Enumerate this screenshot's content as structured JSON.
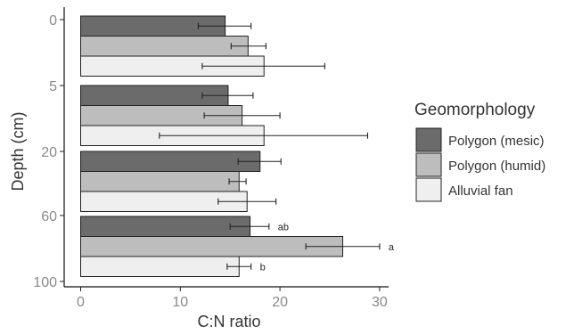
{
  "chart_data": {
    "type": "bar",
    "orientation": "horizontal",
    "title": "",
    "xlabel": "C:N ratio",
    "ylabel": "Depth (cm)",
    "xlim": [
      -1,
      31
    ],
    "x_ticks": [
      0,
      10,
      20,
      30
    ],
    "y_tick_labels": [
      "0",
      "5",
      "20",
      "60",
      "100"
    ],
    "grid": false,
    "legend": {
      "title": "Geomorphology",
      "placement": "right"
    },
    "series": [
      {
        "name": "Polygon (mesic)",
        "color": "#6b6b6b"
      },
      {
        "name": "Polygon (humid)",
        "color": "#bdbdbd"
      },
      {
        "name": "Alluvial fan",
        "color": "#efefef"
      }
    ],
    "groups": [
      {
        "values": [
          14.5,
          16.8,
          18.4
        ],
        "errors": [
          [
            11.8,
            17.1
          ],
          [
            15.1,
            18.6
          ],
          [
            12.2,
            24.5
          ]
        ],
        "annotations": [
          "",
          "",
          ""
        ]
      },
      {
        "values": [
          14.8,
          16.2,
          18.4
        ],
        "errors": [
          [
            12.2,
            17.3
          ],
          [
            12.4,
            20.0
          ],
          [
            7.9,
            28.8
          ]
        ],
        "annotations": [
          "",
          "",
          ""
        ]
      },
      {
        "values": [
          18.0,
          15.9,
          16.7
        ],
        "errors": [
          [
            15.8,
            20.1
          ],
          [
            14.9,
            16.6
          ],
          [
            13.8,
            19.6
          ]
        ],
        "annotations": [
          "",
          "",
          ""
        ]
      },
      {
        "values": [
          17.0,
          26.3,
          15.9
        ],
        "errors": [
          [
            15.0,
            18.9
          ],
          [
            22.6,
            30.0
          ],
          [
            14.7,
            17.1
          ]
        ],
        "annotations": [
          "ab",
          "a",
          "b"
        ]
      }
    ]
  }
}
